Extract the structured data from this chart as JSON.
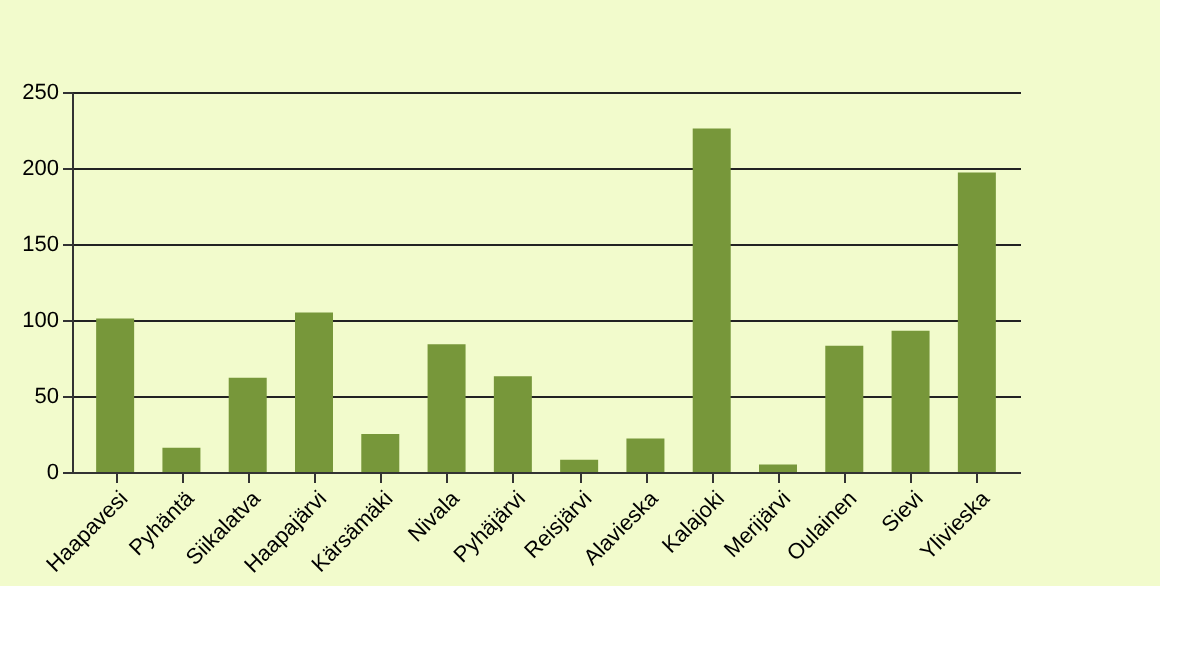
{
  "chart_data": {
    "type": "bar",
    "categories": [
      "Haapavesi",
      "Pyhäntä",
      "Siikalatva",
      "Haapajärvi",
      "Kärsämäki",
      "Nivala",
      "Pyhäjärvi",
      "Reisjärvi",
      "Alavieska",
      "Kalajoki",
      "Merijärvi",
      "Oulainen",
      "Sievi",
      "Ylivieska"
    ],
    "values": [
      101,
      16,
      62,
      105,
      25,
      84,
      63,
      8,
      22,
      226,
      5,
      83,
      93,
      197
    ],
    "color": "#77973a",
    "ylim": [
      0,
      250
    ],
    "yticks": [
      0,
      50,
      100,
      150,
      200,
      250
    ],
    "grid": "y"
  }
}
